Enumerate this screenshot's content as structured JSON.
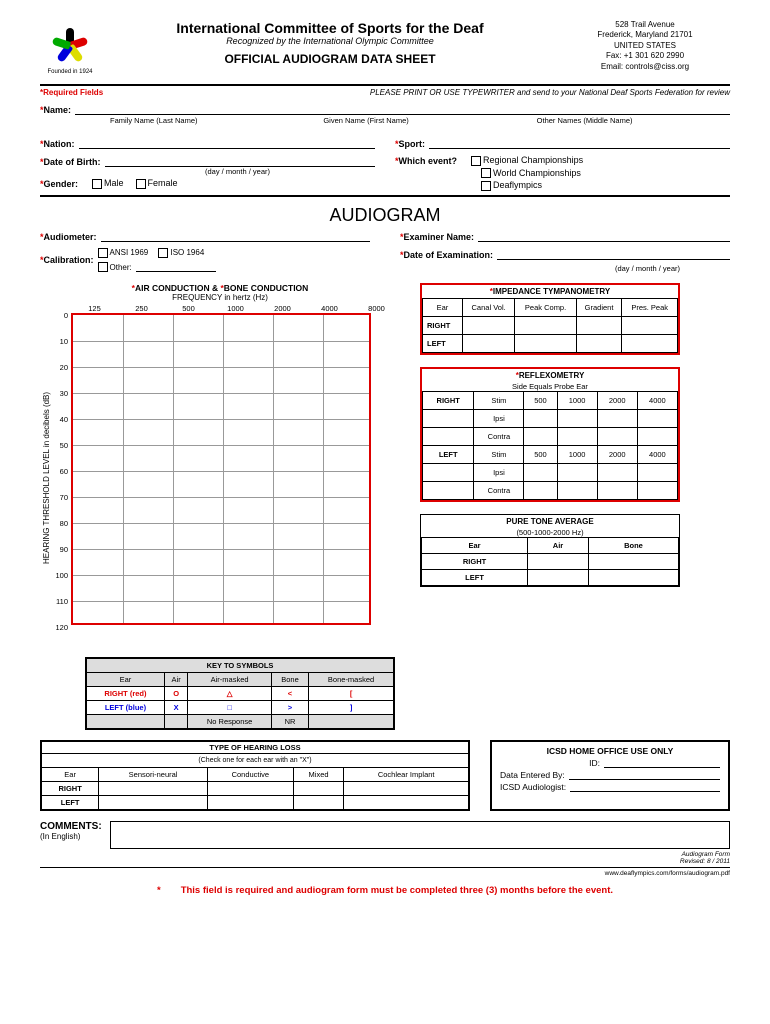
{
  "header": {
    "founded": "Founded in 1924",
    "main_title": "International Committee of Sports for the Deaf",
    "subtitle": "Recognized by the International Olympic Committee",
    "sheet_title": "OFFICIAL AUDIOGRAM DATA SHEET",
    "contact": {
      "l1": "528 Trail Avenue",
      "l2": "Frederick, Maryland 21701",
      "l3": "UNITED STATES",
      "l4": "Fax: +1 301 620 2990",
      "l5": "Email: controls@ciss.org"
    }
  },
  "required_label": "Required Fields",
  "instruction": "PLEASE PRINT OR USE TYPEWRITER and send to your National Deaf Sports Federation for review",
  "fields": {
    "name": "Name:",
    "name_subs": {
      "family": "Family Name (Last Name)",
      "given": "Given Name (First Name)",
      "other": "Other Names (Middle Name)"
    },
    "nation": "Nation:",
    "sport": "Sport:",
    "dob": "Date of Birth:",
    "dob_fmt": "(day / month / year)",
    "which_event": "Which event?",
    "events": {
      "regional": "Regional Championships",
      "world": "World Championships",
      "deaflympics": "Deaflympics"
    },
    "gender": "Gender:",
    "male": "Male",
    "female": "Female"
  },
  "section": "AUDIOGRAM",
  "audio": {
    "audiometer": "Audiometer:",
    "examiner": "Examiner Name:",
    "calibration": "Calibration:",
    "ansi": "ANSI 1969",
    "iso": "ISO 1964",
    "other": "Other:",
    "date_exam": "Date of Examination:",
    "date_fmt": "(day / month / year)"
  },
  "chart": {
    "title_air": "AIR CONDUCTION",
    "title_bone": "BONE CONDUCTION",
    "subtitle": "FREQUENCY in hertz (Hz)",
    "ylabel": "HEARING THRESHOLD LEVEL in decibels (dB)",
    "frequencies": [
      "125",
      "250",
      "500",
      "1000",
      "2000",
      "4000",
      "8000"
    ],
    "db_levels": [
      "0",
      "10",
      "20",
      "30",
      "40",
      "50",
      "60",
      "70",
      "80",
      "90",
      "100",
      "110",
      "120"
    ],
    "border_color": "#d00",
    "grid_color": "#999"
  },
  "impedance": {
    "title": "IMPEDANCE TYMPANOMETRY",
    "cols": [
      "Ear",
      "Canal Vol.",
      "Peak Comp.",
      "Gradient",
      "Pres. Peak"
    ],
    "rows": [
      "RIGHT",
      "LEFT"
    ]
  },
  "reflex": {
    "title": "REFLEXOMETRY",
    "sub": "Side Equals Probe Ear",
    "right": "RIGHT",
    "left": "LEFT",
    "stim": "Stim",
    "ipsi": "Ipsi",
    "contra": "Contra",
    "freqs": [
      "500",
      "1000",
      "2000",
      "4000"
    ]
  },
  "pta": {
    "title": "PURE TONE AVERAGE",
    "sub": "(500-1000-2000 Hz)",
    "cols": [
      "Ear",
      "Air",
      "Bone"
    ],
    "rows": [
      "RIGHT",
      "LEFT"
    ]
  },
  "key": {
    "title": "KEY TO SYMBOLS",
    "cols": [
      "Ear",
      "Air",
      "Air-masked",
      "Bone",
      "Bone-masked"
    ],
    "right": "RIGHT (red)",
    "left": "LEFT (blue)",
    "right_syms": [
      "O",
      "△",
      "<",
      "["
    ],
    "left_syms": [
      "X",
      "□",
      ">",
      "]"
    ],
    "noresp": "No Response",
    "nr": "NR"
  },
  "typeloss": {
    "title": "TYPE OF HEARING LOSS",
    "sub": "(Check one for each ear with an \"X\")",
    "cols": [
      "Ear",
      "Sensori-neural",
      "Conductive",
      "Mixed",
      "Cochlear Implant"
    ],
    "rows": [
      "RIGHT",
      "LEFT"
    ]
  },
  "office": {
    "title": "ICSD HOME OFFICE USE ONLY",
    "id": "ID:",
    "entered": "Data Entered By:",
    "audiologist": "ICSD Audiologist:"
  },
  "comments": {
    "label": "COMMENTS:",
    "sub": "(In English)"
  },
  "footer": {
    "form": "Audiogram Form",
    "rev": "Revised: 8 / 2011",
    "url": "www.deaflympics.com/forms/audiogram.pdf"
  },
  "warning": "This field is required and audiogram form must be completed three (3) months before the event.",
  "colors": {
    "red": "#d00",
    "blue": "#00d",
    "hands": [
      "#000",
      "#d00",
      "#dd0",
      "#00d",
      "#0a0"
    ]
  }
}
